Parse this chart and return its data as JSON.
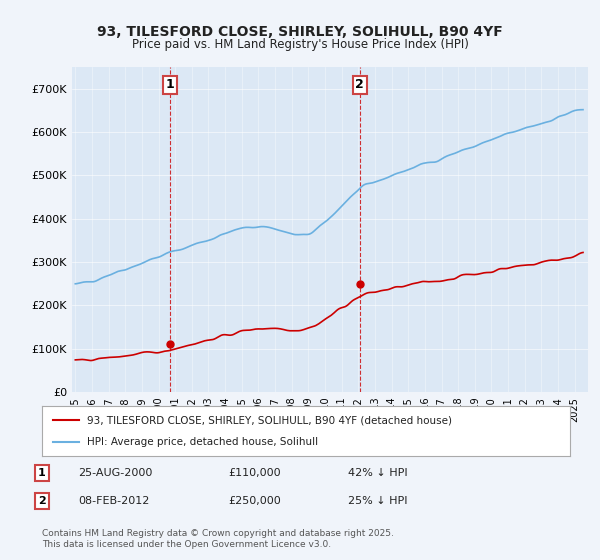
{
  "title_line1": "93, TILESFORD CLOSE, SHIRLEY, SOLIHULL, B90 4YF",
  "title_line2": "Price paid vs. HM Land Registry's House Price Index (HPI)",
  "ylabel": "",
  "xlabel": "",
  "background_color": "#f0f4fa",
  "plot_background": "#dce8f5",
  "hpi_color": "#6ab0e0",
  "price_color": "#cc0000",
  "ylim": [
    0,
    750000
  ],
  "yticks": [
    0,
    100000,
    200000,
    300000,
    400000,
    500000,
    600000,
    700000
  ],
  "ytick_labels": [
    "£0",
    "£100K",
    "£200K",
    "£300K",
    "£400K",
    "£500K",
    "£600K",
    "£700K"
  ],
  "sale1_date_idx": 5.67,
  "sale1_price": 110000,
  "sale1_label": "1",
  "sale2_date_idx": 17.1,
  "sale2_price": 250000,
  "sale2_label": "2",
  "legend_line1": "93, TILESFORD CLOSE, SHIRLEY, SOLIHULL, B90 4YF (detached house)",
  "legend_line2": "HPI: Average price, detached house, Solihull",
  "table_row1": [
    "1",
    "25-AUG-2000",
    "£110,000",
    "42% ↓ HPI"
  ],
  "table_row2": [
    "2",
    "08-FEB-2012",
    "£250,000",
    "25% ↓ HPI"
  ],
  "footer": "Contains HM Land Registry data © Crown copyright and database right 2025.\nThis data is licensed under the Open Government Licence v3.0.",
  "xstart_year": 1995,
  "xend_year": 2025
}
